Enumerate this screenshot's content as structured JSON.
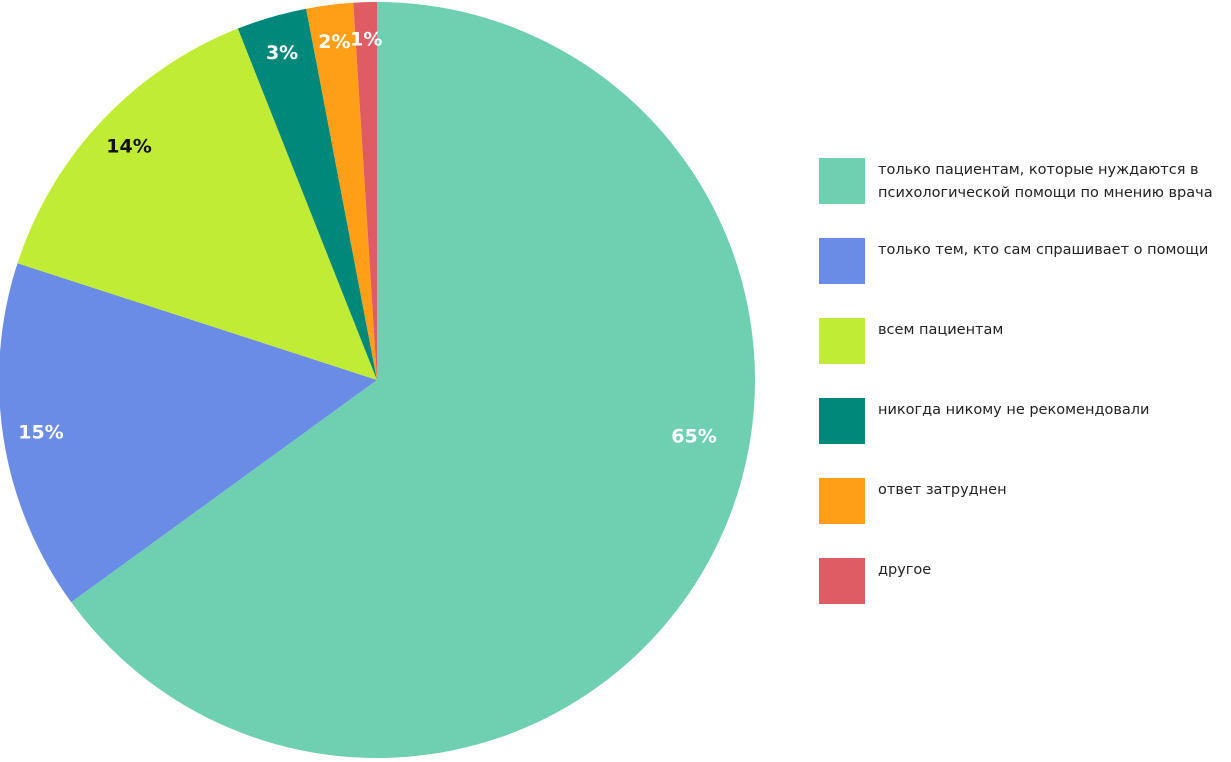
{
  "chart_data": {
    "type": "pie",
    "categories": [
      "только пациентам, которые нуждаются в психологической помощи по мнению врача",
      "только тем, кто сам спрашивает о помощи",
      "всем пациентам",
      "никогда никому не рекомендовали",
      "ответ затруднен",
      "другое"
    ],
    "values": [
      65,
      15,
      14,
      3,
      2,
      1
    ],
    "value_labels": [
      "65%",
      "15%",
      "14%",
      "3%",
      "2%",
      "1%"
    ],
    "colors": [
      "#6fcfb1",
      "#6a8be6",
      "#c1ec36",
      "#00897b",
      "#ff9f17",
      "#e05c64"
    ],
    "label_colors": [
      "#ffffff",
      "#ffffff",
      "#111111",
      "#ffffff",
      "#ffffff",
      "#ffffff"
    ],
    "legend": "right"
  }
}
